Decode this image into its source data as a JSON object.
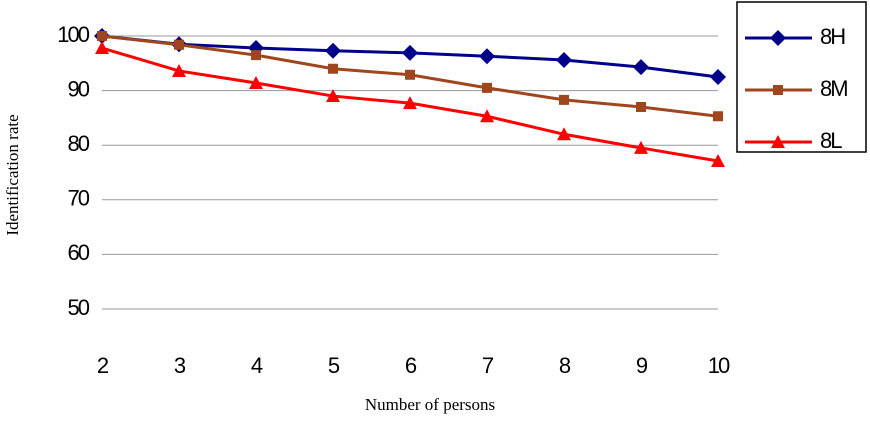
{
  "chart_data": {
    "type": "line",
    "x_label": "Number of persons",
    "y_label": "Identification rate",
    "x": [
      2,
      3,
      4,
      5,
      6,
      7,
      8,
      9,
      10
    ],
    "xlim": [
      2,
      10
    ],
    "ylim": [
      50,
      100
    ],
    "yticks": [
      50,
      60,
      70,
      80,
      90,
      100
    ],
    "grid": true,
    "legend": "top-right",
    "series": [
      {
        "name": "8H",
        "color": "#00008b",
        "marker": "diamond",
        "values": [
          100,
          98.5,
          97.8,
          97.3,
          96.9,
          96.3,
          95.6,
          94.3,
          92.5
        ]
      },
      {
        "name": "8M",
        "color": "#a0461e",
        "marker": "square",
        "values": [
          100,
          98.4,
          96.5,
          94,
          92.9,
          90.5,
          88.3,
          87,
          85.3
        ]
      },
      {
        "name": "8L",
        "color": "#ff0000",
        "marker": "triangle",
        "values": [
          97.8,
          93.6,
          91.4,
          89,
          87.7,
          85.3,
          82,
          79.5,
          77.1
        ]
      }
    ]
  }
}
